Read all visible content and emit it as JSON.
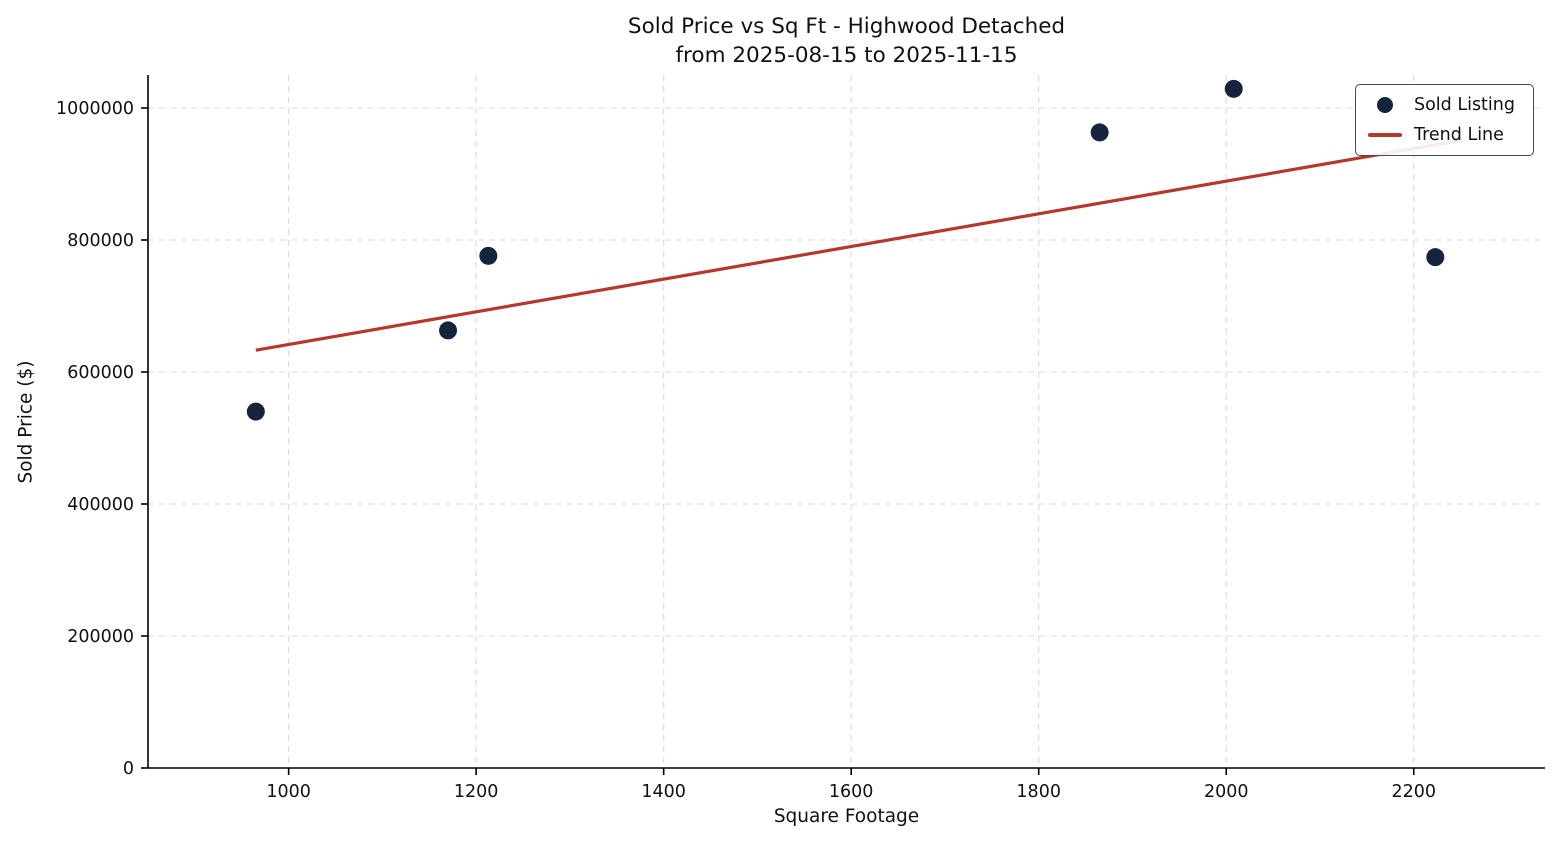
{
  "chart_data": {
    "type": "scatter",
    "title": "Sold Price vs Sq Ft - Highwood Detached",
    "subtitle": "from 2025-08-15 to 2025-11-15",
    "xlabel": "Square Footage",
    "ylabel": "Sold Price ($)",
    "xlim": [
      850,
      2340
    ],
    "ylim": [
      0,
      1050000
    ],
    "xticks": [
      1000,
      1200,
      1400,
      1600,
      1800,
      2000,
      2200
    ],
    "yticks": [
      0,
      200000,
      400000,
      600000,
      800000,
      1000000
    ],
    "grid": true,
    "grid_style": "dashed",
    "legend_position": "upper right",
    "colors": {
      "point": "#15243d",
      "trend": "#b5392b",
      "grid": "#d9d9d9",
      "axis": "#000000",
      "text": "#111111"
    },
    "series": [
      {
        "name": "Sold Listing",
        "type": "scatter",
        "color": "#15243d",
        "points": [
          [
            965,
            540000
          ],
          [
            1170,
            663000
          ],
          [
            1213,
            776000
          ],
          [
            1865,
            963000
          ],
          [
            2008,
            1029000
          ],
          [
            2223,
            774000
          ]
        ]
      },
      {
        "name": "Trend Line",
        "type": "line",
        "color": "#b5392b",
        "points": [
          [
            965,
            633000
          ],
          [
            2250,
            951000
          ]
        ]
      }
    ]
  }
}
